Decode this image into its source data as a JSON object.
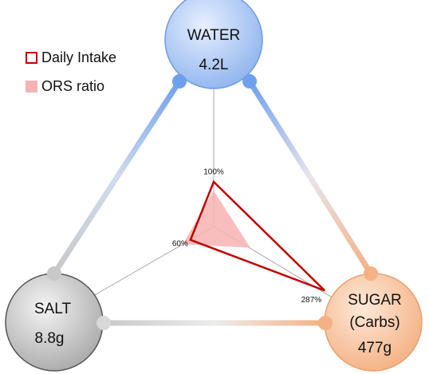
{
  "chart_data": {
    "type": "radar",
    "axes": [
      {
        "name": "WATER",
        "amount": "4.2L"
      },
      {
        "name": "SALT",
        "amount": "8.8g"
      },
      {
        "name": "SUGAR",
        "note": "(Carbs)",
        "amount": "477g"
      }
    ],
    "series": [
      {
        "name": "Daily Intake",
        "color": "#c00000",
        "values": [
          100,
          60,
          287
        ],
        "value_labels": [
          "100%",
          "60%",
          "287%"
        ]
      },
      {
        "name": "ORS ratio",
        "color": "#f7b3b3",
        "values": [
          80,
          80,
          95
        ]
      }
    ]
  }
}
